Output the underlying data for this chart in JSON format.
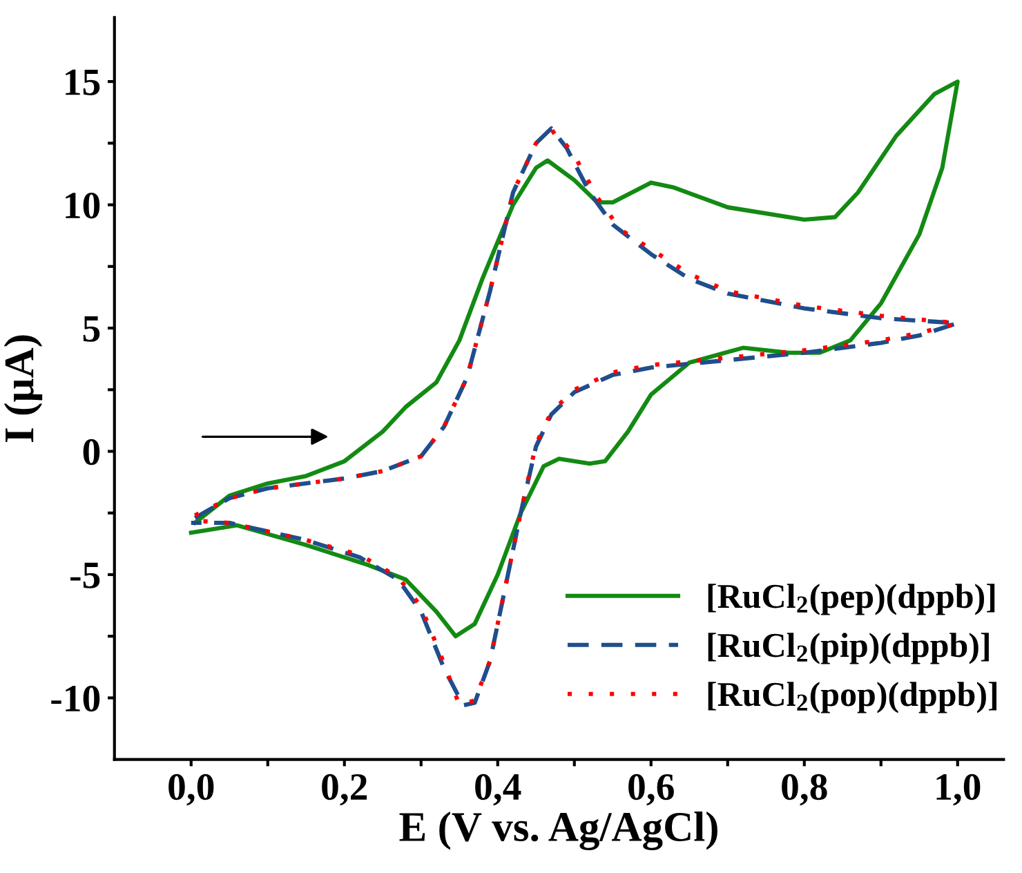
{
  "chart_data": {
    "type": "line",
    "xlabel": "E (V vs. Ag/AgCl)",
    "ylabel": "I (µA)",
    "xlim": [
      -0.1,
      1.06
    ],
    "ylim": [
      -12.5,
      17.6
    ],
    "xticks": [
      {
        "value": 0.0,
        "label": "0,0"
      },
      {
        "value": 0.1,
        "label": null
      },
      {
        "value": 0.2,
        "label": "0,2"
      },
      {
        "value": 0.3,
        "label": null
      },
      {
        "value": 0.4,
        "label": "0,4"
      },
      {
        "value": 0.5,
        "label": null
      },
      {
        "value": 0.6,
        "label": "0,6"
      },
      {
        "value": 0.7,
        "label": null
      },
      {
        "value": 0.8,
        "label": "0,8"
      },
      {
        "value": 0.9,
        "label": null
      },
      {
        "value": 1.0,
        "label": "1,0"
      }
    ],
    "yticks": [
      {
        "value": -10,
        "label": "-10"
      },
      {
        "value": -7.5,
        "label": null
      },
      {
        "value": -5,
        "label": "-5"
      },
      {
        "value": -2.5,
        "label": null
      },
      0,
      {
        "value": 2.5,
        "label": null
      },
      5,
      {
        "value": 7.5,
        "label": null
      },
      10,
      {
        "value": 12.5,
        "label": null
      },
      15
    ],
    "grid": false,
    "legend": "bottom right",
    "marker": "none",
    "series": [
      {
        "name": "[RuCl$_{2}$(pep)(dppb)]",
        "color": "#138a13",
        "line_style": "solid",
        "x": [
          0.005,
          0.05,
          0.1,
          0.15,
          0.2,
          0.25,
          0.28,
          0.32,
          0.35,
          0.38,
          0.42,
          0.45,
          0.465,
          0.5,
          0.53,
          0.55,
          0.6,
          0.63,
          0.7,
          0.8,
          0.84,
          0.87,
          0.92,
          0.97,
          1.0,
          0.98,
          0.95,
          0.9,
          0.86,
          0.82,
          0.78,
          0.72,
          0.65,
          0.6,
          0.57,
          0.54,
          0.52,
          0.48,
          0.46,
          0.43,
          0.4,
          0.37,
          0.345,
          0.32,
          0.28,
          0.23,
          0.15,
          0.06,
          0.0
        ],
        "values": [
          -2.9,
          -1.8,
          -1.3,
          -1.0,
          -0.4,
          0.8,
          1.8,
          2.8,
          4.5,
          7,
          10,
          11.5,
          11.8,
          11,
          10.1,
          10.1,
          10.9,
          10.7,
          9.9,
          9.4,
          9.5,
          10.5,
          12.8,
          14.5,
          15.0,
          11.5,
          8.8,
          6.0,
          4.5,
          4.0,
          4.0,
          4.2,
          3.6,
          2.3,
          0.8,
          -0.4,
          -0.5,
          -0.3,
          -0.6,
          -2.5,
          -5,
          -7,
          -7.5,
          -6.5,
          -5.2,
          -4.6,
          -3.8,
          -3.0,
          -3.3
        ]
      },
      {
        "name": "[RuCl$_{2}$(pip)(dppb)]",
        "color": "#1f4e8c",
        "line_style": "dashed",
        "x": [
          0.005,
          0.05,
          0.1,
          0.2,
          0.25,
          0.3,
          0.33,
          0.36,
          0.39,
          0.42,
          0.45,
          0.47,
          0.49,
          0.52,
          0.55,
          0.6,
          0.65,
          0.7,
          0.8,
          0.9,
          1.0,
          0.95,
          0.9,
          0.8,
          0.7,
          0.6,
          0.55,
          0.5,
          0.47,
          0.45,
          0.43,
          0.41,
          0.39,
          0.37,
          0.355,
          0.33,
          0.3,
          0.27,
          0.22,
          0.15,
          0.05,
          0.0
        ],
        "values": [
          -2.7,
          -1.9,
          -1.5,
          -1.1,
          -0.8,
          -0.2,
          1,
          3,
          6.5,
          10.5,
          12.5,
          13.1,
          12.3,
          10.5,
          9.2,
          8.0,
          7.0,
          6.4,
          5.8,
          5.4,
          5.2,
          4.7,
          4.4,
          4.0,
          3.7,
          3.4,
          3.1,
          2.4,
          1.5,
          0.2,
          -2.5,
          -5.5,
          -8.5,
          -10.2,
          -10.3,
          -8.8,
          -6.5,
          -5.2,
          -4.3,
          -3.6,
          -2.9,
          -2.9
        ]
      },
      {
        "name": "[RuCl$_{2}$(pop)(dppb)]",
        "color": "#ff0000",
        "line_style": "dotted",
        "x": [
          0.005,
          0.05,
          0.1,
          0.2,
          0.25,
          0.3,
          0.33,
          0.36,
          0.39,
          0.42,
          0.45,
          0.475,
          0.5,
          0.53,
          0.56,
          0.6,
          0.65,
          0.7,
          0.8,
          0.9,
          1.0,
          0.95,
          0.9,
          0.8,
          0.7,
          0.6,
          0.55,
          0.5,
          0.47,
          0.45,
          0.43,
          0.41,
          0.39,
          0.37,
          0.35,
          0.33,
          0.3,
          0.27,
          0.22,
          0.15,
          0.05,
          0.0
        ],
        "values": [
          -2.6,
          -1.9,
          -1.5,
          -1.1,
          -0.8,
          -0.2,
          1,
          3,
          6.5,
          10.5,
          12.5,
          13.0,
          12.0,
          10.3,
          9.0,
          8.2,
          7.2,
          6.5,
          5.9,
          5.5,
          5.2,
          4.8,
          4.5,
          4.1,
          3.8,
          3.5,
          3.2,
          2.5,
          1.6,
          0.3,
          -2.5,
          -5.5,
          -8.5,
          -10.1,
          -10.3,
          -8.6,
          -6.3,
          -5.1,
          -4.2,
          -3.6,
          -2.9,
          -2.8
        ]
      }
    ]
  }
}
